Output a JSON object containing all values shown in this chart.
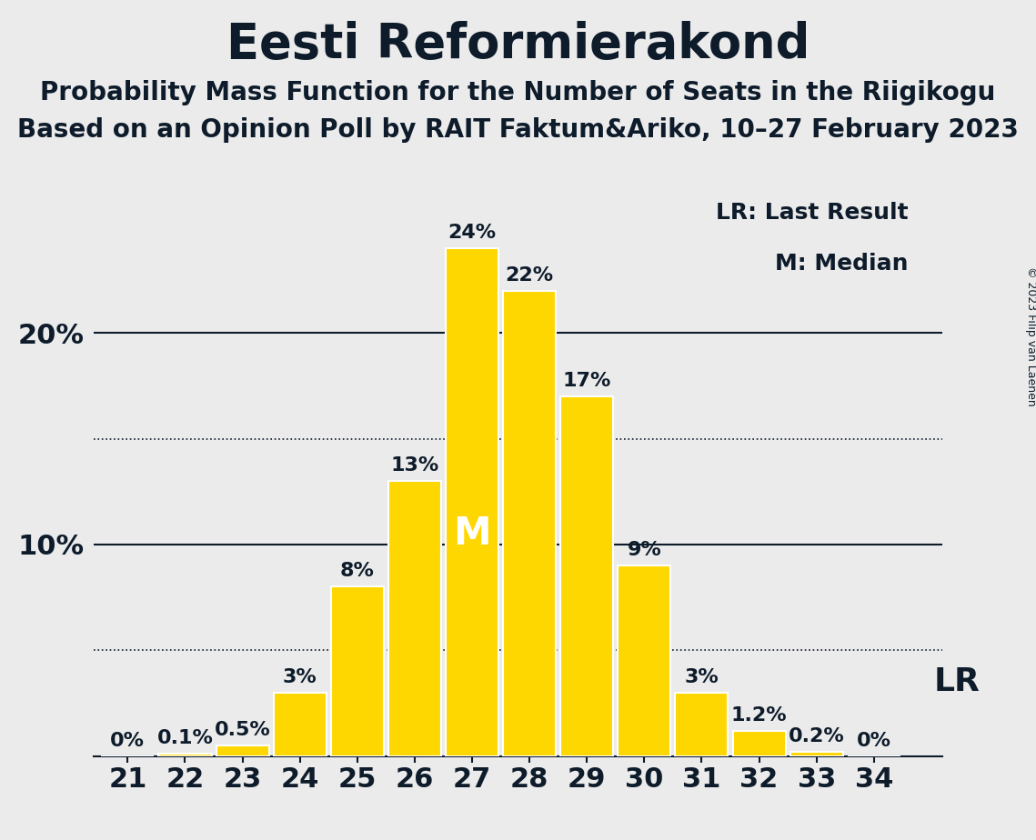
{
  "title": "Eesti Reformierakond",
  "subtitle1": "Probability Mass Function for the Number of Seats in the Riigikogu",
  "subtitle2": "Based on an Opinion Poll by RAIT Faktum&Ariko, 10–27 February 2023",
  "copyright": "© 2023 Filip van Laenen",
  "seats": [
    21,
    22,
    23,
    24,
    25,
    26,
    27,
    28,
    29,
    30,
    31,
    32,
    33,
    34
  ],
  "probabilities": [
    0.0,
    0.1,
    0.5,
    3.0,
    8.0,
    13.0,
    24.0,
    22.0,
    17.0,
    9.0,
    3.0,
    1.2,
    0.2,
    0.0
  ],
  "bar_color": "#FFD700",
  "bar_edge_color": "#FFFFFF",
  "background_color": "#EBEBEB",
  "text_color": "#0D1B2A",
  "median_seat": 27,
  "last_result_seat": 34,
  "median_label": "M",
  "lr_label": "LR",
  "lr_legend": "LR: Last Result",
  "m_legend": "M: Median",
  "ylim": [
    0,
    27
  ],
  "solid_lines": [
    10.0,
    20.0
  ],
  "dotted_lines": [
    5.0,
    15.0
  ],
  "title_fontsize": 38,
  "subtitle_fontsize": 20,
  "bar_label_fontsize": 16,
  "tick_fontsize": 22,
  "legend_fontsize": 18,
  "median_fontsize": 30,
  "lr_fontsize": 26,
  "copyright_fontsize": 9
}
